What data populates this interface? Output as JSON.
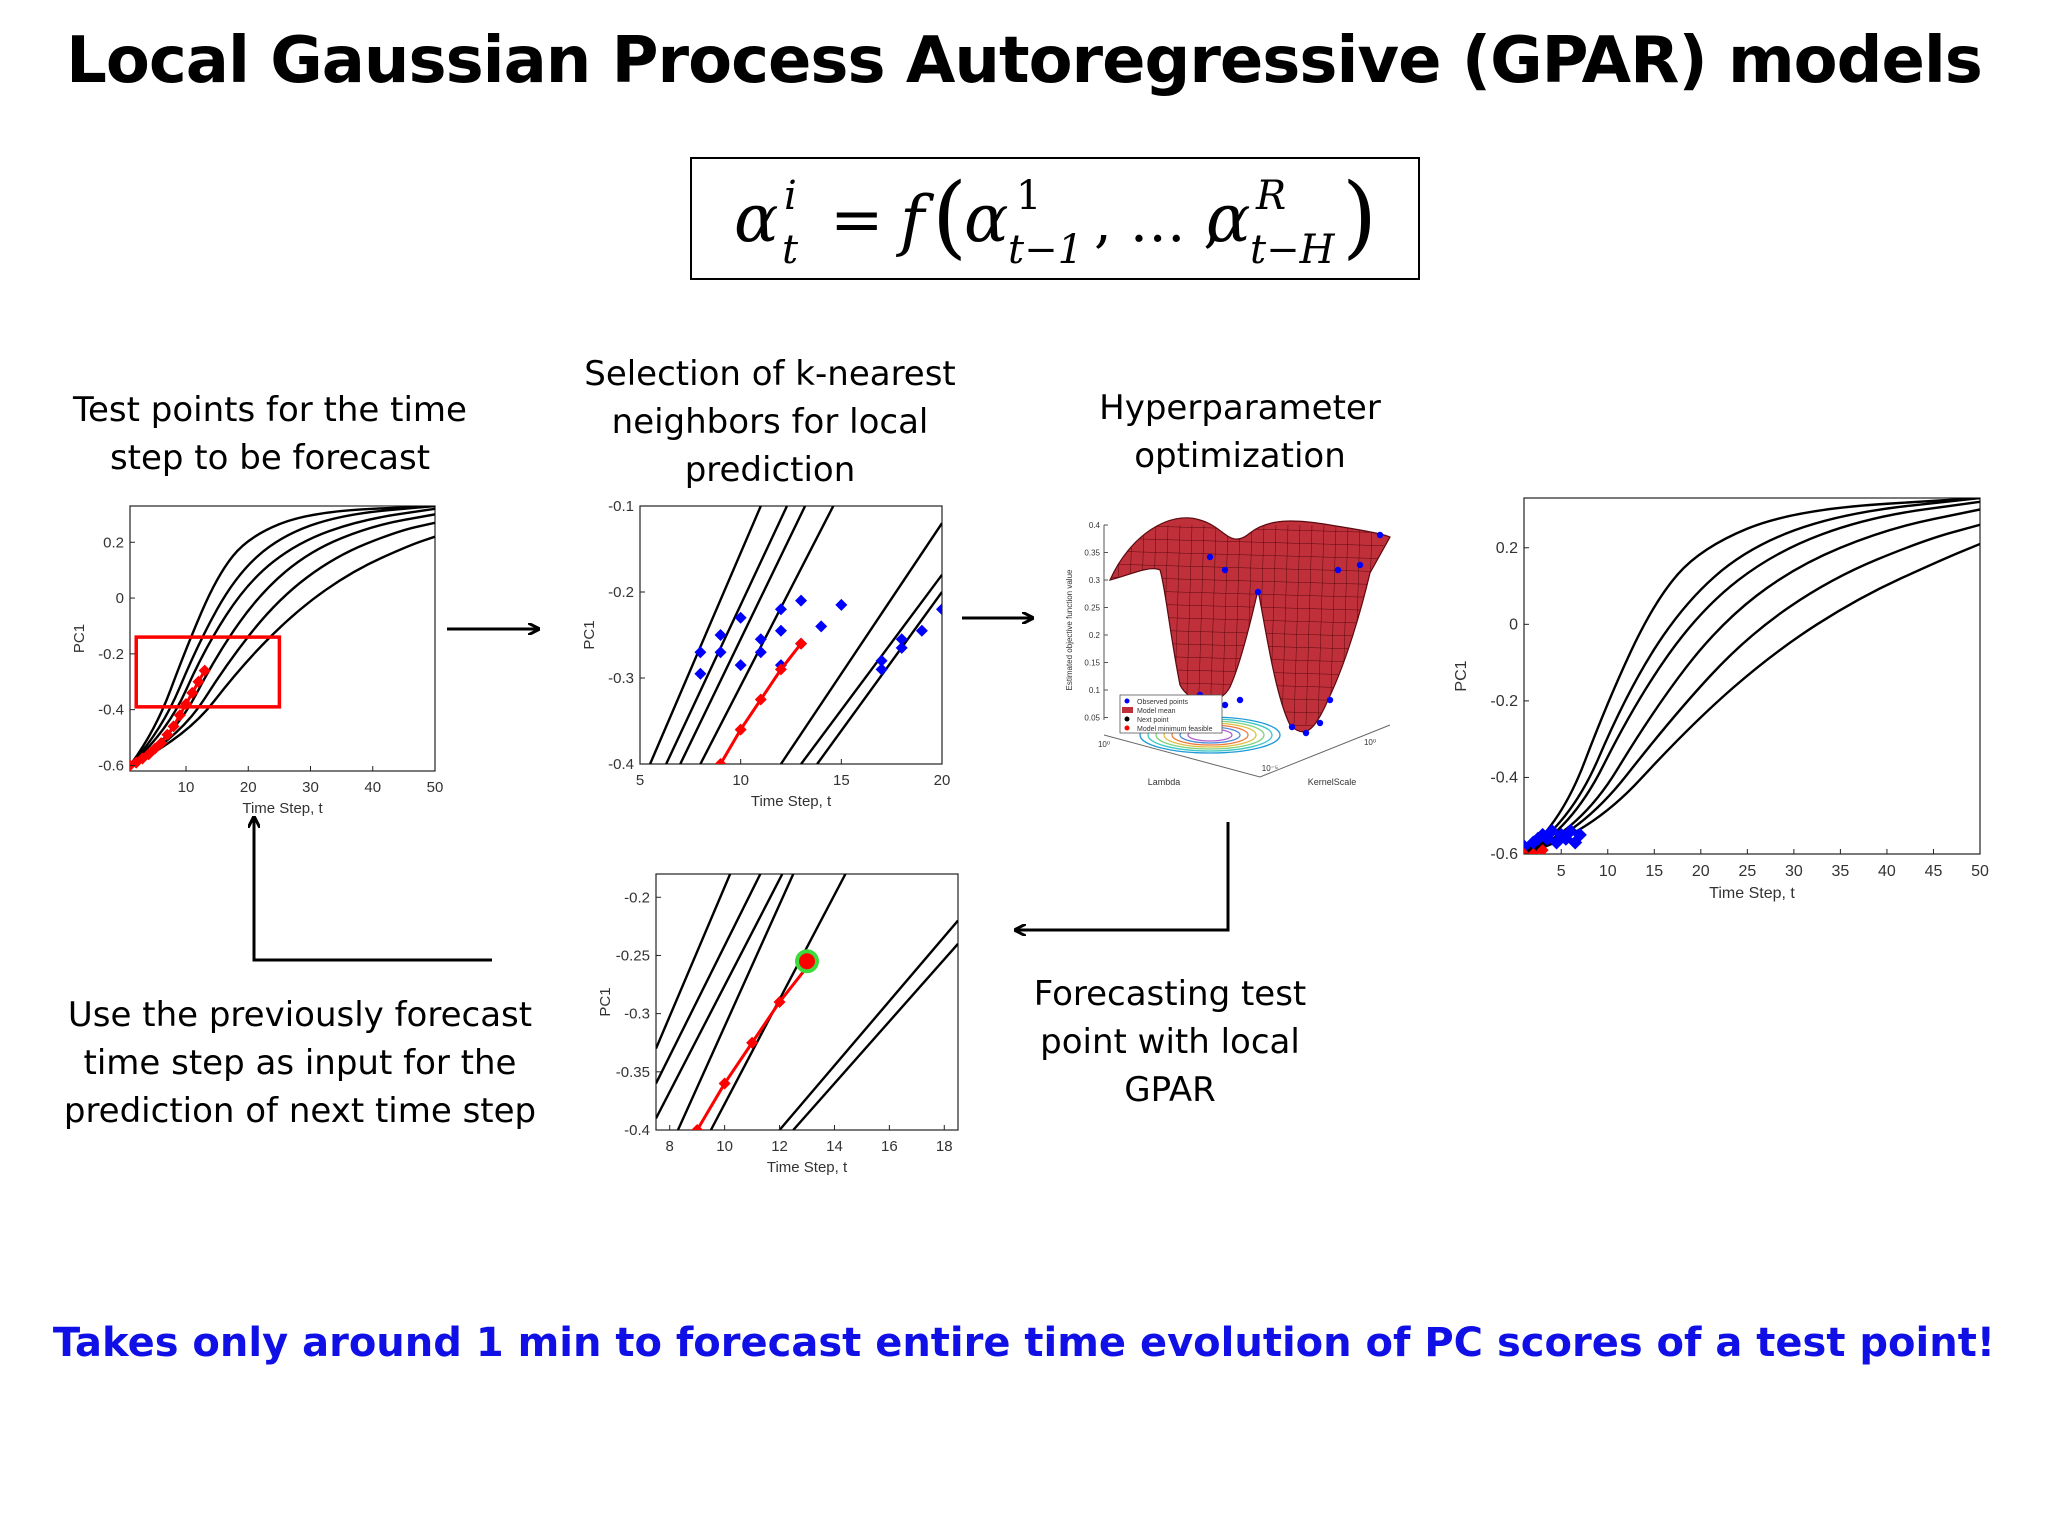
{
  "title": "Local Gaussian Process Autoregressive (GPAR) models",
  "equation": {
    "lhs_base": "α",
    "lhs_sup": "i",
    "lhs_sub": "t",
    "equals": "=",
    "func": "f",
    "arg1_base": "α",
    "arg1_sup": "1",
    "arg1_sub": "t−1",
    "ellipsis": ", … ,",
    "argR_base": "α",
    "argR_sup": "R",
    "argR_sub": "t−H"
  },
  "captions": {
    "test_points": "Test points for the time\nstep to be forecast",
    "knn": "Selection of k-nearest\nneighbors for local\nprediction",
    "hyper": "Hyperparameter\noptimization",
    "forecast": "Forecasting test\npoint with local\nGPAR",
    "previous": "Use the previously forecast\ntime step as input for the\nprediction of next time step"
  },
  "footer": "Takes only around 1 min to forecast entire time evolution of PC scores of a test point!",
  "colors": {
    "footer": "#1010e6",
    "forecast": "#ff0000",
    "neighbors": "#0000ff",
    "curves": "#000000",
    "surface": "#c0303a",
    "new_point_ring": "#3ddc3d"
  },
  "chart_data": [
    {
      "id": "plot1",
      "type": "line",
      "xlabel": "Time Step, t",
      "ylabel": "PC1",
      "xlim": [
        1,
        50
      ],
      "ylim": [
        -0.62,
        0.33
      ],
      "xticks": [
        10,
        20,
        30,
        40,
        50
      ],
      "yticks": [
        -0.6,
        -0.4,
        -0.2,
        0,
        0.2
      ],
      "series": [
        {
          "values": [
            {
              "t": 1,
              "v": -0.6
            },
            {
              "t": 5,
              "v": -0.48
            },
            {
              "t": 10,
              "v": -0.18
            },
            {
              "t": 15,
              "v": 0.08
            },
            {
              "t": 20,
              "v": 0.22
            },
            {
              "t": 30,
              "v": 0.31
            },
            {
              "t": 50,
              "v": 0.33
            }
          ]
        },
        {
          "values": [
            {
              "t": 1,
              "v": -0.6
            },
            {
              "t": 6,
              "v": -0.48
            },
            {
              "t": 12,
              "v": -0.16
            },
            {
              "t": 18,
              "v": 0.08
            },
            {
              "t": 25,
              "v": 0.22
            },
            {
              "t": 35,
              "v": 0.3
            },
            {
              "t": 50,
              "v": 0.33
            }
          ]
        },
        {
          "values": [
            {
              "t": 1,
              "v": -0.6
            },
            {
              "t": 7,
              "v": -0.48
            },
            {
              "t": 13,
              "v": -0.18
            },
            {
              "t": 20,
              "v": 0.06
            },
            {
              "t": 28,
              "v": 0.2
            },
            {
              "t": 38,
              "v": 0.28
            },
            {
              "t": 50,
              "v": 0.32
            }
          ]
        },
        {
          "values": [
            {
              "t": 1,
              "v": -0.6
            },
            {
              "t": 8,
              "v": -0.5
            },
            {
              "t": 15,
              "v": -0.2
            },
            {
              "t": 22,
              "v": 0.02
            },
            {
              "t": 30,
              "v": 0.17
            },
            {
              "t": 40,
              "v": 0.26
            },
            {
              "t": 50,
              "v": 0.3
            }
          ]
        },
        {
          "values": [
            {
              "t": 1,
              "v": -0.6
            },
            {
              "t": 9,
              "v": -0.5
            },
            {
              "t": 17,
              "v": -0.22
            },
            {
              "t": 25,
              "v": 0.0
            },
            {
              "t": 34,
              "v": 0.15
            },
            {
              "t": 44,
              "v": 0.24
            },
            {
              "t": 50,
              "v": 0.27
            }
          ]
        },
        {
          "values": [
            {
              "t": 1,
              "v": -0.6
            },
            {
              "t": 10,
              "v": -0.5
            },
            {
              "t": 19,
              "v": -0.24
            },
            {
              "t": 28,
              "v": -0.04
            },
            {
              "t": 37,
              "v": 0.1
            },
            {
              "t": 46,
              "v": 0.19
            },
            {
              "t": 50,
              "v": 0.22
            }
          ]
        }
      ],
      "forecast": {
        "t": [
          1,
          2,
          3,
          4,
          5,
          6,
          7,
          8,
          9,
          10,
          11,
          12,
          13
        ],
        "v": [
          -0.6,
          -0.59,
          -0.575,
          -0.56,
          -0.54,
          -0.52,
          -0.49,
          -0.46,
          -0.42,
          -0.38,
          -0.34,
          -0.3,
          -0.26
        ]
      },
      "highlight": {
        "t": [
          2,
          25
        ],
        "v": [
          -0.39,
          -0.14
        ]
      }
    },
    {
      "id": "plot2",
      "type": "line",
      "xlabel": "Time Step, t",
      "ylabel": "PC1",
      "xlim": [
        5,
        20
      ],
      "ylim": [
        -0.4,
        -0.1
      ],
      "xticks": [
        5,
        10,
        15,
        20
      ],
      "yticks": [
        -0.4,
        -0.3,
        -0.2,
        -0.1
      ],
      "series": [
        {
          "values": [
            {
              "t": 5.5,
              "v": -0.4
            },
            {
              "t": 11,
              "v": -0.1
            }
          ]
        },
        {
          "values": [
            {
              "t": 6.3,
              "v": -0.4
            },
            {
              "t": 12.3,
              "v": -0.1
            }
          ]
        },
        {
          "values": [
            {
              "t": 7,
              "v": -0.4
            },
            {
              "t": 13.2,
              "v": -0.1
            }
          ]
        },
        {
          "values": [
            {
              "t": 8,
              "v": -0.4
            },
            {
              "t": 14.6,
              "v": -0.1
            }
          ]
        },
        {
          "values": [
            {
              "t": 12,
              "v": -0.4
            },
            {
              "t": 20,
              "v": -0.12
            }
          ]
        },
        {
          "values": [
            {
              "t": 13,
              "v": -0.4
            },
            {
              "t": 20,
              "v": -0.18
            }
          ]
        },
        {
          "values": [
            {
              "t": 13.8,
              "v": -0.4
            },
            {
              "t": 20,
              "v": -0.2
            }
          ]
        }
      ],
      "neighbors": [
        {
          "t": [
            8,
            9,
            10
          ],
          "v": [
            -0.27,
            -0.25,
            -0.23
          ]
        },
        {
          "t": [
            8,
            9
          ],
          "v": [
            -0.295,
            -0.27
          ]
        },
        {
          "t": [
            10,
            11,
            12
          ],
          "v": [
            -0.285,
            -0.255,
            -0.22
          ]
        },
        {
          "t": [
            11,
            12,
            13
          ],
          "v": [
            -0.27,
            -0.245,
            -0.21
          ]
        },
        {
          "t": [
            12,
            13,
            14,
            15
          ],
          "v": [
            -0.285,
            -0.26,
            -0.24,
            -0.215
          ]
        },
        {
          "t": [
            17,
            18,
            19,
            20
          ],
          "v": [
            -0.29,
            -0.265,
            -0.245,
            -0.22
          ]
        },
        {
          "t": [
            17,
            18
          ],
          "v": [
            -0.28,
            -0.255
          ]
        }
      ],
      "forecast": {
        "t": [
          9,
          10,
          11,
          12,
          13
        ],
        "v": [
          -0.4,
          -0.36,
          -0.325,
          -0.29,
          -0.26
        ]
      }
    },
    {
      "id": "plot3",
      "type": "surface",
      "axis_texts": [
        "Estimated objective function value",
        "Lambda",
        "KernelScale"
      ],
      "zticks": [
        "0.4",
        "0.35",
        "0.3",
        "0.25",
        "0.2",
        "0.15",
        "0.1",
        "0.05"
      ],
      "tick_texts": [
        "10⁰",
        "10⁻⁵",
        "10⁰"
      ],
      "legend": [
        "Observed points",
        "Model mean",
        "Next point",
        "Model minimum feasible"
      ]
    },
    {
      "id": "plot4",
      "type": "line",
      "xlabel": "Time Step, t",
      "ylabel": "PC1",
      "xlim": [
        7.5,
        18.5
      ],
      "ylim": [
        -0.4,
        -0.18
      ],
      "xticks": [
        8,
        10,
        12,
        14,
        16,
        18
      ],
      "yticks": [
        -0.4,
        -0.35,
        -0.3,
        -0.25,
        -0.2
      ],
      "series": [
        {
          "values": [
            {
              "t": 7.5,
              "v": -0.33
            },
            {
              "t": 10.2,
              "v": -0.18
            }
          ]
        },
        {
          "values": [
            {
              "t": 7.5,
              "v": -0.36
            },
            {
              "t": 11.3,
              "v": -0.18
            }
          ]
        },
        {
          "values": [
            {
              "t": 7.5,
              "v": -0.39
            },
            {
              "t": 12.1,
              "v": -0.18
            }
          ]
        },
        {
          "values": [
            {
              "t": 8.3,
              "v": -0.4
            },
            {
              "t": 12.5,
              "v": -0.18
            }
          ]
        },
        {
          "values": [
            {
              "t": 9.5,
              "v": -0.4
            },
            {
              "t": 14.4,
              "v": -0.18
            }
          ]
        },
        {
          "values": [
            {
              "t": 12,
              "v": -0.4
            },
            {
              "t": 18.5,
              "v": -0.22
            }
          ]
        },
        {
          "values": [
            {
              "t": 12.5,
              "v": -0.4
            },
            {
              "t": 18.5,
              "v": -0.24
            }
          ]
        }
      ],
      "forecast": {
        "t": [
          9,
          10,
          11,
          12,
          13
        ],
        "v": [
          -0.4,
          -0.36,
          -0.325,
          -0.29,
          -0.26
        ]
      },
      "new_point": {
        "t": 13,
        "v": -0.255
      }
    },
    {
      "id": "plot5",
      "type": "line",
      "xlabel": "Time Step, t",
      "ylabel": "PC1",
      "xlim": [
        1,
        50
      ],
      "ylim": [
        -0.6,
        0.33
      ],
      "xticks": [
        5,
        10,
        15,
        20,
        25,
        30,
        35,
        40,
        45,
        50
      ],
      "yticks": [
        -0.6,
        -0.4,
        -0.2,
        0,
        0.2
      ],
      "series": [
        {
          "values": [
            {
              "t": 1,
              "v": -0.6
            },
            {
              "t": 5,
              "v": -0.52
            },
            {
              "t": 10,
              "v": -0.2
            },
            {
              "t": 15,
              "v": 0.06
            },
            {
              "t": 20,
              "v": 0.2
            },
            {
              "t": 30,
              "v": 0.3
            },
            {
              "t": 50,
              "v": 0.33
            }
          ]
        },
        {
          "values": [
            {
              "t": 1,
              "v": -0.6
            },
            {
              "t": 6,
              "v": -0.52
            },
            {
              "t": 12,
              "v": -0.18
            },
            {
              "t": 18,
              "v": 0.05
            },
            {
              "t": 25,
              "v": 0.2
            },
            {
              "t": 35,
              "v": 0.29
            },
            {
              "t": 50,
              "v": 0.33
            }
          ]
        },
        {
          "values": [
            {
              "t": 1,
              "v": -0.6
            },
            {
              "t": 6,
              "v": -0.54
            },
            {
              "t": 13,
              "v": -0.2
            },
            {
              "t": 20,
              "v": 0.04
            },
            {
              "t": 28,
              "v": 0.19
            },
            {
              "t": 38,
              "v": 0.28
            },
            {
              "t": 50,
              "v": 0.32
            }
          ]
        },
        {
          "values": [
            {
              "t": 1,
              "v": -0.6
            },
            {
              "t": 7,
              "v": -0.54
            },
            {
              "t": 15,
              "v": -0.22
            },
            {
              "t": 22,
              "v": 0.0
            },
            {
              "t": 30,
              "v": 0.15
            },
            {
              "t": 40,
              "v": 0.25
            },
            {
              "t": 50,
              "v": 0.3
            }
          ]
        },
        {
          "values": [
            {
              "t": 1,
              "v": -0.6
            },
            {
              "t": 7,
              "v": -0.55
            },
            {
              "t": 17,
              "v": -0.24
            },
            {
              "t": 25,
              "v": -0.03
            },
            {
              "t": 34,
              "v": 0.12
            },
            {
              "t": 44,
              "v": 0.22
            },
            {
              "t": 50,
              "v": 0.26
            }
          ]
        },
        {
          "values": [
            {
              "t": 1,
              "v": -0.6
            },
            {
              "t": 8,
              "v": -0.55
            },
            {
              "t": 19,
              "v": -0.26
            },
            {
              "t": 28,
              "v": -0.07
            },
            {
              "t": 37,
              "v": 0.07
            },
            {
              "t": 46,
              "v": 0.17
            },
            {
              "t": 50,
              "v": 0.21
            }
          ]
        }
      ],
      "blue_points": {
        "t": [
          1,
          2,
          2.5,
          3,
          3.5,
          4,
          4.5,
          5,
          5.5,
          6,
          6.5,
          7
        ],
        "v": [
          -0.58,
          -0.57,
          -0.56,
          -0.55,
          -0.56,
          -0.54,
          -0.57,
          -0.55,
          -0.56,
          -0.54,
          -0.57,
          -0.55
        ]
      },
      "forecast": {
        "t": [
          1,
          2,
          3
        ],
        "v": [
          -0.6,
          -0.6,
          -0.59
        ]
      }
    }
  ]
}
